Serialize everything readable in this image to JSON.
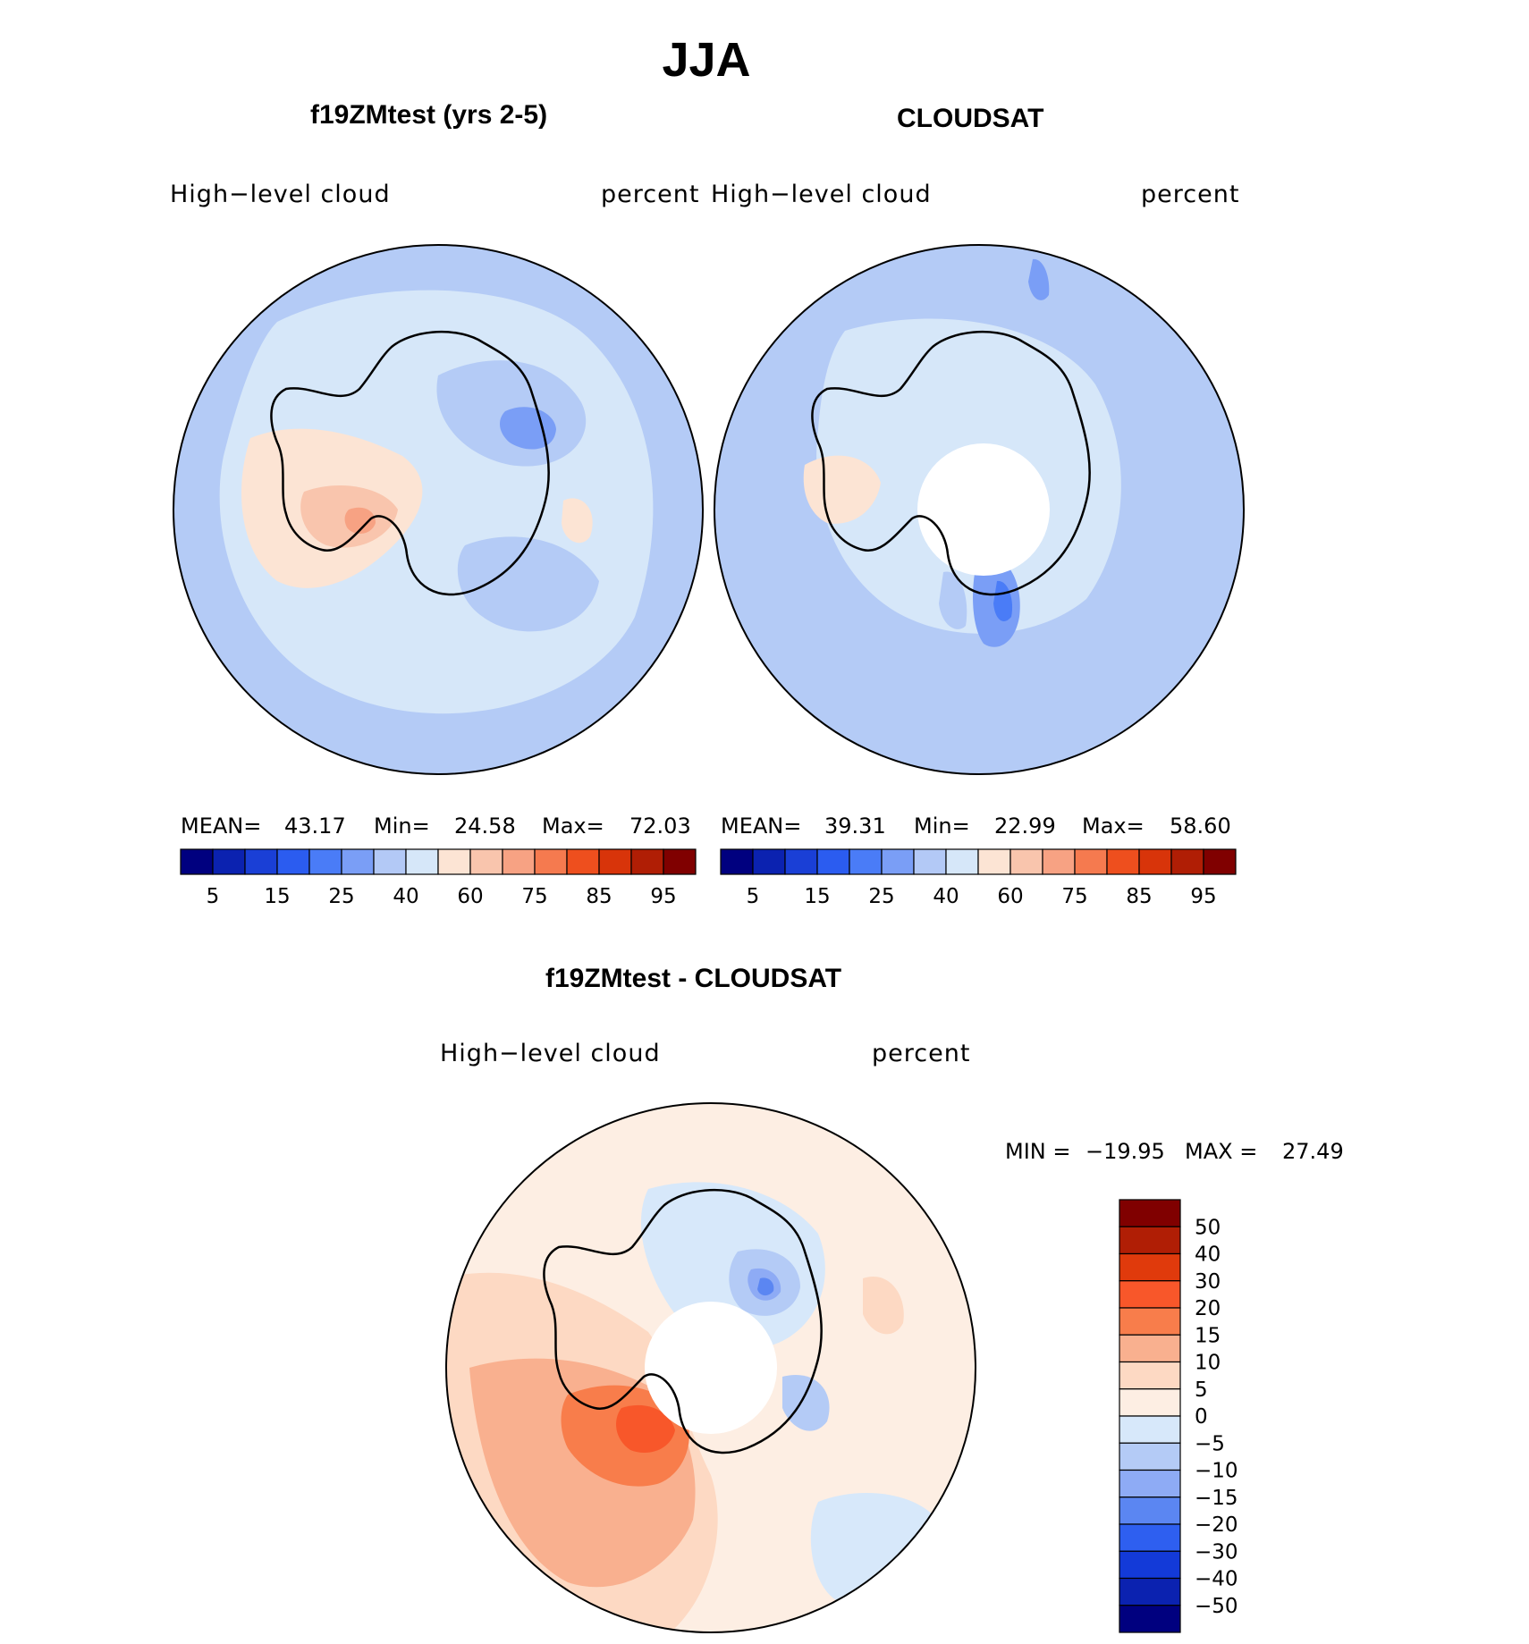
{
  "figure": {
    "season": "JJA"
  },
  "panels": [
    {
      "id": "model",
      "title": "f19ZMtest (yrs 2-5)",
      "variable": "High−level cloud",
      "units": "percent",
      "stats": {
        "mean_label": "MEAN=",
        "mean": "43.17",
        "min_label": "Min=",
        "min": "24.58",
        "max_label": "Max=",
        "max": "72.03"
      }
    },
    {
      "id": "obs",
      "title": "CLOUDSAT",
      "variable": "High−level cloud",
      "units": "percent",
      "stats": {
        "mean_label": "MEAN=",
        "mean": "39.31",
        "min_label": "Min=",
        "min": "22.99",
        "max_label": "Max=",
        "max": "58.60"
      }
    },
    {
      "id": "diff",
      "title": "f19ZMtest - CLOUDSAT",
      "variable": "High−level cloud",
      "units": "percent",
      "stats": {
        "min_label": "MIN =",
        "min": "−19.95",
        "max_label": "MAX =",
        "max": "27.49"
      }
    }
  ],
  "chart_data": [
    {
      "type": "heatmap",
      "projection": "south polar stereographic",
      "panel": "model",
      "title": "f19ZMtest (yrs 2-5)",
      "field": "High-level cloud",
      "units": "percent",
      "mean": 43.17,
      "min": 24.58,
      "max": 72.03,
      "colorbar": {
        "orientation": "horizontal",
        "levels": [
          5,
          10,
          15,
          20,
          25,
          30,
          40,
          50,
          60,
          70,
          75,
          80,
          85,
          90,
          95
        ],
        "tick_labels": [
          "5",
          "15",
          "25",
          "40",
          "60",
          "75",
          "85",
          "95"
        ],
        "colors": [
          "#00007f",
          "#0b22b0",
          "#1a3fd6",
          "#2b5cf0",
          "#4a7cf7",
          "#7a9ef6",
          "#b3c9f6",
          "#d6e7f9",
          "#fce4d4",
          "#f9c5ad",
          "#f7a283",
          "#f57a4f",
          "#ee4f1e",
          "#d8340a",
          "#b01e05",
          "#800000"
        ]
      }
    },
    {
      "type": "heatmap",
      "projection": "south polar stereographic",
      "panel": "obs",
      "title": "CLOUDSAT",
      "field": "High-level cloud",
      "units": "percent",
      "mean": 39.31,
      "min": 22.99,
      "max": 58.6,
      "colorbar": {
        "orientation": "horizontal",
        "levels": [
          5,
          10,
          15,
          20,
          25,
          30,
          40,
          50,
          60,
          70,
          75,
          80,
          85,
          90,
          95
        ],
        "tick_labels": [
          "5",
          "15",
          "25",
          "40",
          "60",
          "75",
          "85",
          "95"
        ],
        "colors": [
          "#00007f",
          "#0b22b0",
          "#1a3fd6",
          "#2b5cf0",
          "#4a7cf7",
          "#7a9ef6",
          "#b3c9f6",
          "#d6e7f9",
          "#fce4d4",
          "#f9c5ad",
          "#f7a283",
          "#f57a4f",
          "#ee4f1e",
          "#d8340a",
          "#b01e05",
          "#800000"
        ]
      }
    },
    {
      "type": "heatmap",
      "projection": "south polar stereographic",
      "panel": "diff",
      "title": "f19ZMtest - CLOUDSAT",
      "field": "High-level cloud",
      "units": "percent",
      "min": -19.95,
      "max": 27.49,
      "colorbar": {
        "orientation": "vertical",
        "tick_labels": [
          "50",
          "40",
          "30",
          "20",
          "15",
          "10",
          "5",
          "0",
          "−5",
          "−10",
          "−15",
          "−20",
          "−30",
          "−40",
          "−50"
        ],
        "colors": [
          "#800000",
          "#b01e05",
          "#e03a0c",
          "#f8572a",
          "#f87d4b",
          "#f9b08f",
          "#fdd9c3",
          "#fdeee3",
          "#d7e8fa",
          "#b4cbf6",
          "#8eabf5",
          "#5b86f2",
          "#2e5ff0",
          "#133ad8",
          "#0b22b0",
          "#00007f"
        ]
      }
    }
  ]
}
